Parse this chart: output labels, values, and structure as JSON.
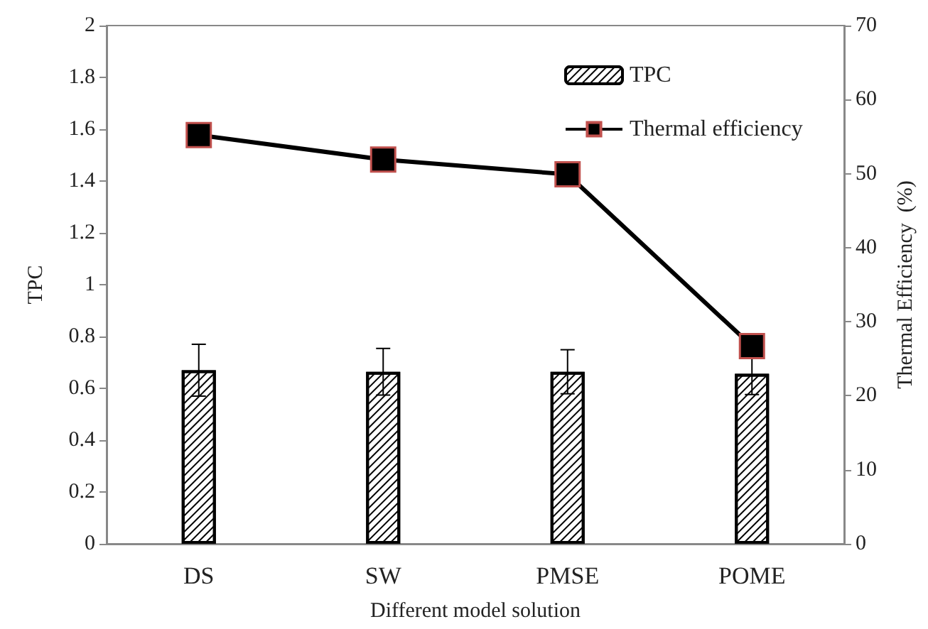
{
  "chart_data": {
    "type": "bar",
    "xlabel": "Different model solution",
    "ylabel": "TPC",
    "y2label": "Thermal Efficiency  (%)",
    "categories": [
      "DS",
      "SW",
      "PMSE",
      "POME"
    ],
    "series": [
      {
        "name": "TPC",
        "color": "#000000",
        "values": [
          0.67,
          0.664,
          0.664,
          0.656
        ],
        "errors": [
          0.1,
          0.09,
          0.085,
          0.08
        ]
      },
      {
        "name": "Thermal efficiency",
        "type": "line",
        "axis": "y2",
        "color": "#000000",
        "marker": "square",
        "values": [
          55.2,
          51.9,
          49.9,
          26.7
        ]
      }
    ],
    "ylim": [
      0,
      2
    ],
    "yticks": [
      0,
      0.2,
      0.4,
      0.6,
      0.8,
      1,
      1.2,
      1.4,
      1.6,
      1.8,
      2
    ],
    "y2lim": [
      0,
      70
    ],
    "y2ticks": [
      0,
      10,
      20,
      30,
      40,
      50,
      60,
      70
    ],
    "grid": false,
    "legend": "top right"
  }
}
